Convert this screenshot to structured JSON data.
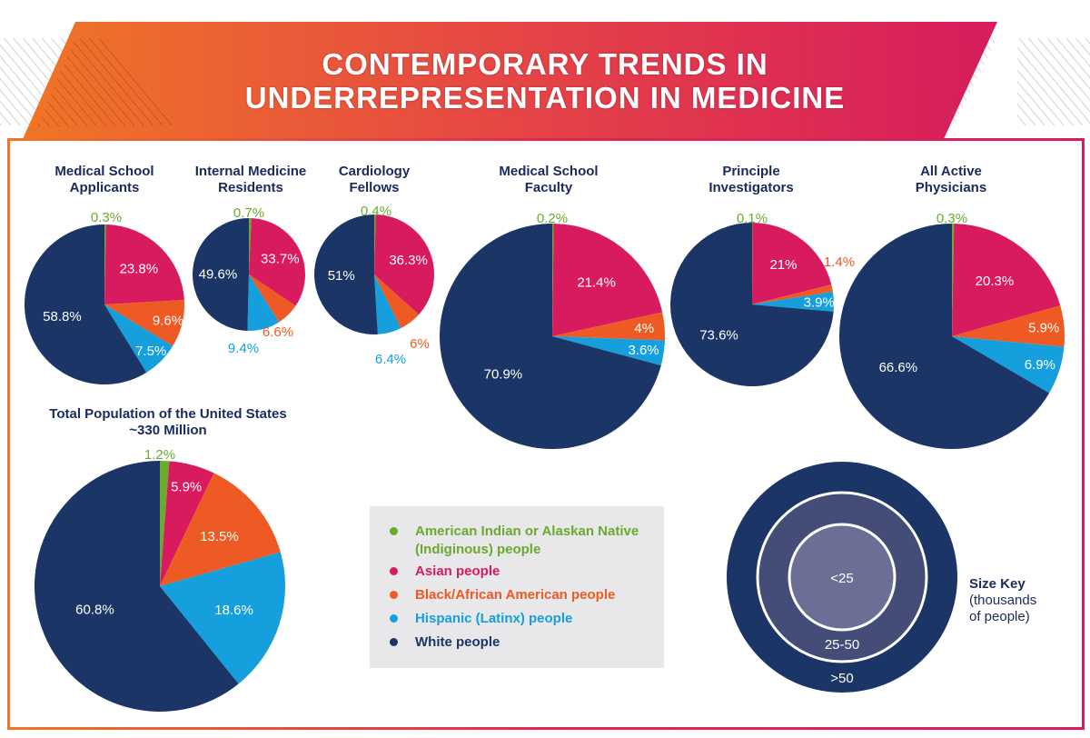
{
  "header": {
    "title_line1": "CONTEMPORARY TRENDS IN",
    "title_line2": "UNDERREPRESENTATION IN MEDICINE"
  },
  "colors": {
    "indigenous": "#6aab2e",
    "asian": "#d81b5e",
    "black": "#ee5a24",
    "hispanic": "#159fdc",
    "white": "#1b3567",
    "title_text": "#1a2a5c",
    "banner_start": "#f07526",
    "banner_end": "#d81b5e"
  },
  "legend": {
    "items": [
      {
        "key": "indigenous",
        "label": "American Indian or Alaskan Native (Indiginous) people"
      },
      {
        "key": "asian",
        "label": "Asian people"
      },
      {
        "key": "black",
        "label": "Black/African American people"
      },
      {
        "key": "hispanic",
        "label": "Hispanic (Latinx) people"
      },
      {
        "key": "white",
        "label": "White people"
      }
    ]
  },
  "size_key": {
    "title": "Size Key",
    "subtitle_line1": "(thousands",
    "subtitle_line2": "of people)",
    "rings": [
      "<25",
      "25-50",
      ">50"
    ]
  },
  "chart_data": [
    {
      "type": "pie",
      "title_line1": "Medical School",
      "title_line2": "Applicants",
      "size_bucket": "25-50",
      "categories": [
        "indigenous",
        "asian",
        "black",
        "hispanic",
        "white"
      ],
      "values": [
        0.3,
        23.8,
        9.6,
        7.5,
        58.8
      ],
      "labels": [
        "0.3%",
        "23.8%",
        "9.6%",
        "7.5%",
        "58.8%"
      ]
    },
    {
      "type": "pie",
      "title_line1": "Internal Medicine",
      "title_line2": "Residents",
      "size_bucket": "<25",
      "categories": [
        "indigenous",
        "asian",
        "black",
        "hispanic",
        "white"
      ],
      "values": [
        0.7,
        33.7,
        6.6,
        9.4,
        49.6
      ],
      "labels": [
        "0.7%",
        "33.7%",
        "6.6%",
        "9.4%",
        "49.6%"
      ]
    },
    {
      "type": "pie",
      "title_line1": "Cardiology",
      "title_line2": "Fellows",
      "size_bucket": "<25",
      "categories": [
        "indigenous",
        "asian",
        "black",
        "hispanic",
        "white"
      ],
      "values": [
        0.4,
        36.3,
        6,
        6.4,
        51
      ],
      "labels": [
        "0.4%",
        "36.3%",
        "6%",
        "6.4%",
        "51%"
      ]
    },
    {
      "type": "pie",
      "title_line1": "Medical School",
      "title_line2": "Faculty",
      "size_bucket": ">50",
      "categories": [
        "indigenous",
        "asian",
        "black",
        "hispanic",
        "white"
      ],
      "values": [
        0.2,
        21.4,
        4,
        3.6,
        70.9
      ],
      "labels": [
        "0.2%",
        "21.4%",
        "4%",
        "3.6%",
        "70.9%"
      ]
    },
    {
      "type": "pie",
      "title_line1": "Principle",
      "title_line2": "Investigators",
      "size_bucket": "25-50",
      "categories": [
        "indigenous",
        "asian",
        "black",
        "hispanic",
        "white"
      ],
      "values": [
        0.1,
        21,
        1.4,
        3.9,
        73.6
      ],
      "labels": [
        "0.1%",
        "21%",
        "1.4%",
        "3.9%",
        "73.6%"
      ]
    },
    {
      "type": "pie",
      "title_line1": "All Active",
      "title_line2": "Physicians",
      "size_bucket": ">50",
      "categories": [
        "indigenous",
        "asian",
        "black",
        "hispanic",
        "white"
      ],
      "values": [
        0.3,
        20.3,
        5.9,
        6.9,
        66.6
      ],
      "labels": [
        "0.3%",
        "20.3%",
        "5.9%",
        "6.9%",
        "66.6%"
      ]
    },
    {
      "type": "pie",
      "title_line1": "Total Population of the United States",
      "title_line2": "~330 Million",
      "size_bucket": "",
      "categories": [
        "indigenous",
        "asian",
        "black",
        "hispanic",
        "white"
      ],
      "values": [
        1.2,
        5.9,
        13.5,
        18.6,
        60.8
      ],
      "labels": [
        "1.2%",
        "5.9%",
        "13.5%",
        "18.6%",
        "60.8%"
      ]
    }
  ]
}
